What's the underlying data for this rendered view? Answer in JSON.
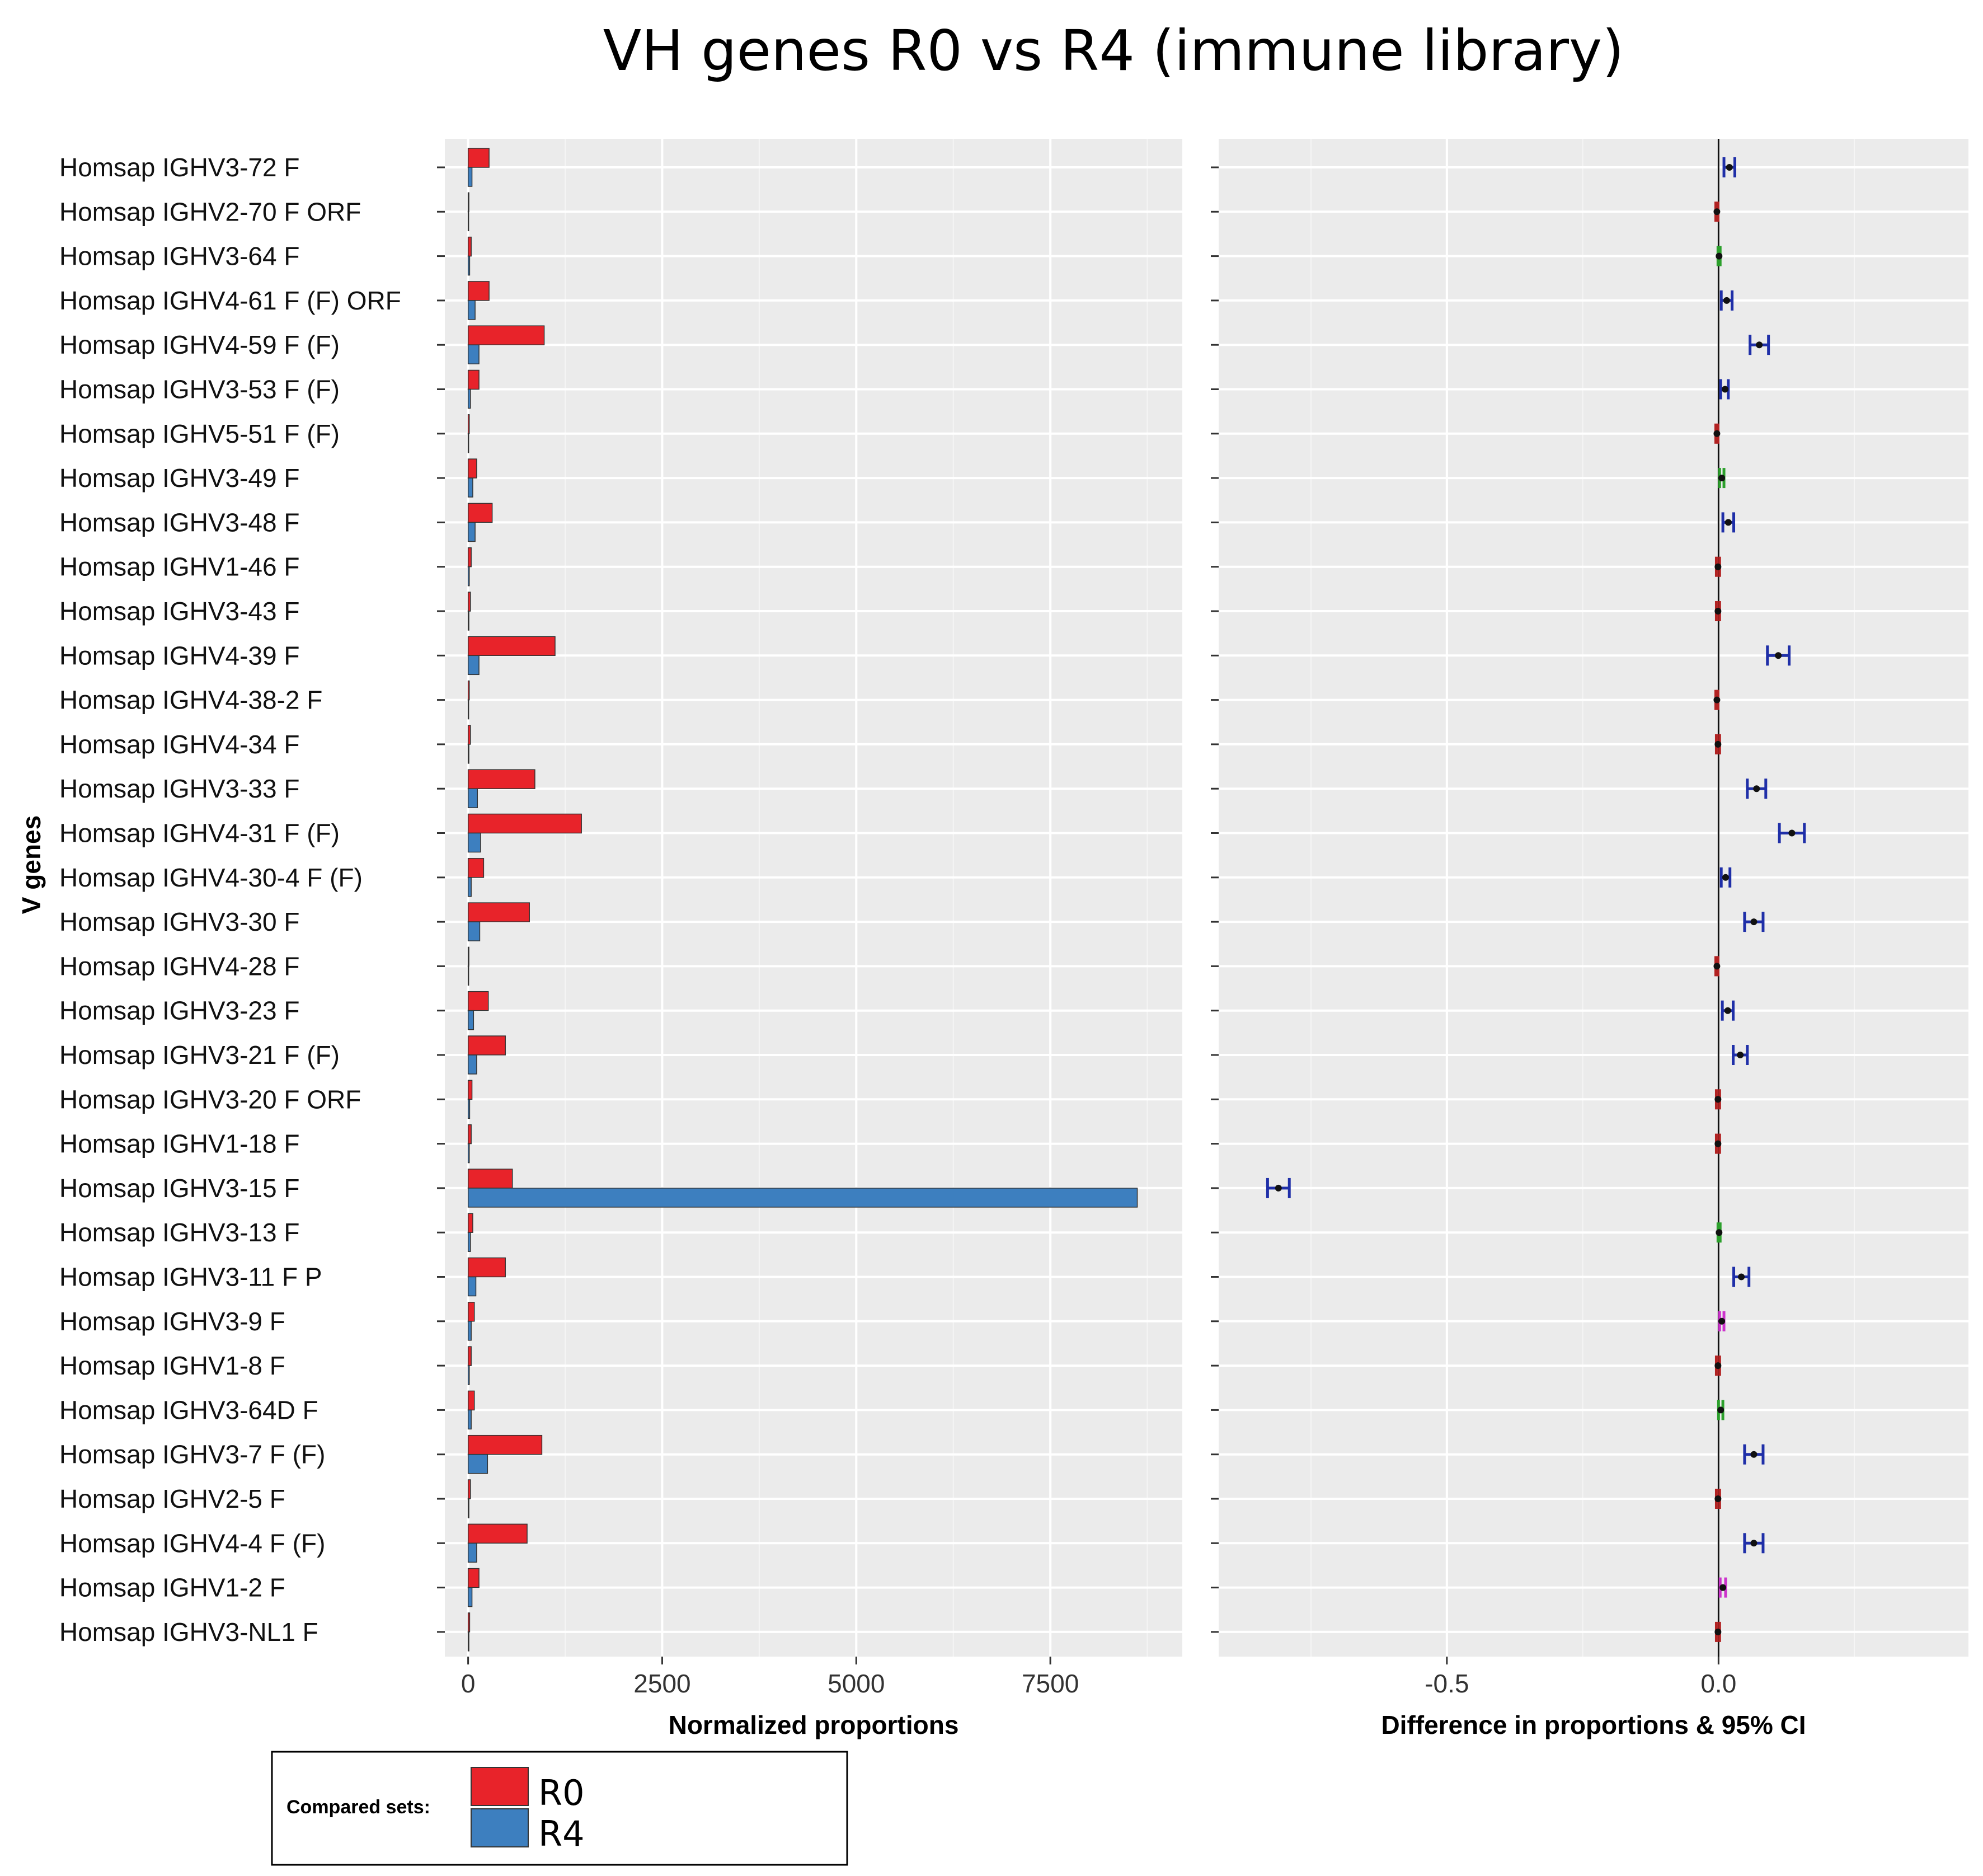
{
  "chart_data": {
    "title": "VH genes R0 vs R4 (immune library)",
    "ylabel": "V genes",
    "genes": [
      "Homsap IGHV3-72 F",
      "Homsap IGHV2-70 F ORF",
      "Homsap IGHV3-64 F",
      "Homsap IGHV4-61 F (F) ORF",
      "Homsap IGHV4-59 F (F)",
      "Homsap IGHV3-53 F (F)",
      "Homsap IGHV5-51 F (F)",
      "Homsap IGHV3-49 F",
      "Homsap IGHV3-48 F",
      "Homsap IGHV1-46 F",
      "Homsap IGHV3-43 F",
      "Homsap IGHV4-39 F",
      "Homsap IGHV4-38-2 F",
      "Homsap IGHV4-34 F",
      "Homsap IGHV3-33 F",
      "Homsap IGHV4-31 F (F)",
      "Homsap IGHV4-30-4 F (F)",
      "Homsap IGHV3-30 F",
      "Homsap IGHV4-28 F",
      "Homsap IGHV3-23 F",
      "Homsap IGHV3-21 F (F)",
      "Homsap IGHV3-20 F ORF",
      "Homsap IGHV1-18 F",
      "Homsap IGHV3-15 F",
      "Homsap IGHV3-13 F",
      "Homsap IGHV3-11 F P",
      "Homsap IGHV3-9 F",
      "Homsap IGHV1-8 F",
      "Homsap IGHV3-64D F",
      "Homsap IGHV3-7 F (F)",
      "Homsap IGHV2-5 F",
      "Homsap IGHV4-4 F (F)",
      "Homsap IGHV1-2 F",
      "Homsap IGHV3-NL1 F"
    ],
    "left_panel": {
      "type": "bar",
      "orientation": "horizontal",
      "xlabel": "Normalized proportions",
      "xlim": [
        -300,
        9200
      ],
      "xticks": [
        0,
        2500,
        5000,
        7500
      ],
      "xtick_labels": [
        "0",
        "2500",
        "5000",
        "7500"
      ],
      "series": [
        {
          "name": "R0",
          "color": "#e8232a",
          "values": [
            270,
            10,
            40,
            270,
            980,
            140,
            15,
            110,
            310,
            40,
            30,
            1120,
            15,
            30,
            860,
            1460,
            200,
            790,
            10,
            260,
            480,
            50,
            40,
            570,
            60,
            480,
            80,
            40,
            80,
            950,
            30,
            760,
            140,
            20
          ]
        },
        {
          "name": "R4",
          "color": "#3d7fbf",
          "values": [
            50,
            5,
            20,
            90,
            140,
            30,
            5,
            60,
            90,
            15,
            10,
            140,
            5,
            10,
            120,
            160,
            40,
            150,
            5,
            70,
            110,
            20,
            15,
            8620,
            30,
            100,
            40,
            15,
            40,
            250,
            10,
            110,
            50,
            10
          ]
        }
      ]
    },
    "right_panel": {
      "type": "scatter",
      "xlabel": "Difference in proportions & 95% CI",
      "xlim": [
        -0.92,
        0.46
      ],
      "xticks": [
        -0.5,
        0.0
      ],
      "xtick_labels": [
        "-0.5",
        "0.0"
      ],
      "zero_line": 0.0,
      "points": [
        {
          "est": 0.02,
          "lo": 0.01,
          "hi": 0.03,
          "color": "#1f2fa8"
        },
        {
          "est": -0.003,
          "lo": -0.005,
          "hi": -0.001,
          "color": "#b22222"
        },
        {
          "est": 0.001,
          "lo": -0.001,
          "hi": 0.003,
          "color": "#2ca02c"
        },
        {
          "est": 0.015,
          "lo": 0.005,
          "hi": 0.025,
          "color": "#1f2fa8"
        },
        {
          "est": 0.075,
          "lo": 0.058,
          "hi": 0.092,
          "color": "#1f2fa8"
        },
        {
          "est": 0.012,
          "lo": 0.004,
          "hi": 0.018,
          "color": "#1f2fa8"
        },
        {
          "est": -0.003,
          "lo": -0.005,
          "hi": -0.001,
          "color": "#b22222"
        },
        {
          "est": 0.006,
          "lo": 0.002,
          "hi": 0.01,
          "color": "#2ca02c"
        },
        {
          "est": 0.018,
          "lo": 0.008,
          "hi": 0.028,
          "color": "#1f2fa8"
        },
        {
          "est": -0.001,
          "lo": -0.004,
          "hi": 0.002,
          "color": "#b22222"
        },
        {
          "est": -0.001,
          "lo": -0.004,
          "hi": 0.002,
          "color": "#b22222"
        },
        {
          "est": 0.11,
          "lo": 0.09,
          "hi": 0.13,
          "color": "#1f2fa8"
        },
        {
          "est": -0.003,
          "lo": -0.005,
          "hi": -0.001,
          "color": "#b22222"
        },
        {
          "est": -0.001,
          "lo": -0.004,
          "hi": 0.002,
          "color": "#b22222"
        },
        {
          "est": 0.07,
          "lo": 0.053,
          "hi": 0.087,
          "color": "#1f2fa8"
        },
        {
          "est": 0.135,
          "lo": 0.112,
          "hi": 0.158,
          "color": "#1f2fa8"
        },
        {
          "est": 0.013,
          "lo": 0.005,
          "hi": 0.021,
          "color": "#1f2fa8"
        },
        {
          "est": 0.065,
          "lo": 0.048,
          "hi": 0.082,
          "color": "#1f2fa8"
        },
        {
          "est": -0.003,
          "lo": -0.005,
          "hi": -0.001,
          "color": "#b22222"
        },
        {
          "est": 0.017,
          "lo": 0.007,
          "hi": 0.027,
          "color": "#1f2fa8"
        },
        {
          "est": 0.04,
          "lo": 0.027,
          "hi": 0.053,
          "color": "#1f2fa8"
        },
        {
          "est": -0.001,
          "lo": -0.004,
          "hi": 0.002,
          "color": "#b22222"
        },
        {
          "est": -0.001,
          "lo": -0.004,
          "hi": 0.002,
          "color": "#b22222"
        },
        {
          "est": -0.81,
          "lo": -0.83,
          "hi": -0.79,
          "color": "#1f2fa8"
        },
        {
          "est": 0.001,
          "lo": -0.001,
          "hi": 0.003,
          "color": "#2ca02c"
        },
        {
          "est": 0.042,
          "lo": 0.028,
          "hi": 0.056,
          "color": "#1f2fa8"
        },
        {
          "est": 0.006,
          "lo": 0.002,
          "hi": 0.01,
          "color": "#cc33cc"
        },
        {
          "est": -0.001,
          "lo": -0.004,
          "hi": 0.002,
          "color": "#b22222"
        },
        {
          "est": 0.004,
          "lo": 0.0,
          "hi": 0.008,
          "color": "#2ca02c"
        },
        {
          "est": 0.065,
          "lo": 0.048,
          "hi": 0.082,
          "color": "#1f2fa8"
        },
        {
          "est": -0.001,
          "lo": -0.004,
          "hi": 0.002,
          "color": "#b22222"
        },
        {
          "est": 0.065,
          "lo": 0.048,
          "hi": 0.082,
          "color": "#1f2fa8"
        },
        {
          "est": 0.008,
          "lo": 0.003,
          "hi": 0.013,
          "color": "#cc33cc"
        },
        {
          "est": -0.001,
          "lo": -0.004,
          "hi": 0.002,
          "color": "#b22222"
        }
      ]
    },
    "legend": {
      "title": "Compared sets:",
      "placement": "bottom-left",
      "items": [
        {
          "label": "R0",
          "color": "#e8232a"
        },
        {
          "label": "R4",
          "color": "#3d7fbf"
        }
      ]
    }
  }
}
